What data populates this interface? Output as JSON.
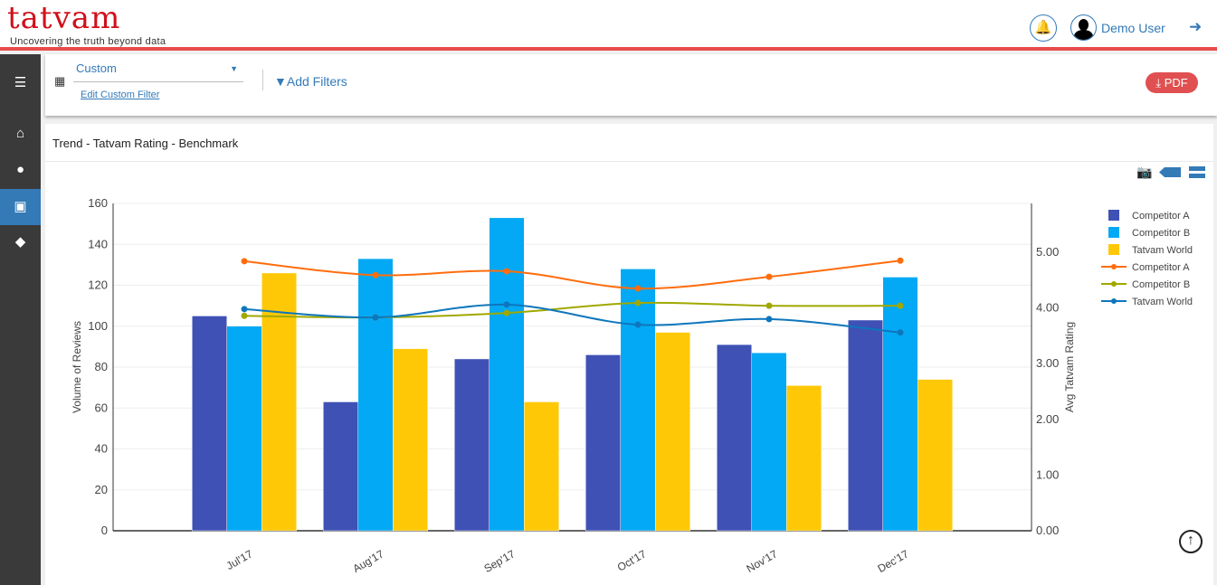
{
  "header": {
    "logo_text": "tatvam",
    "tagline": "Uncovering the truth beyond data",
    "user_name": "Demo User"
  },
  "filters": {
    "date_range": "Custom",
    "edit_link": "Edit Custom Filter",
    "add_filters": "Add Filters",
    "pdf_label": "PDF"
  },
  "card": {
    "title": "Trend - Tatvam Rating - Benchmark"
  },
  "icons": [
    "bars-icon",
    "home-icon",
    "comment-icon",
    "calendar-icon",
    "tags-icon",
    "bell-icon",
    "logout-icon",
    "camera-icon",
    "filter-icon",
    "download-icon",
    "arrow-up-icon"
  ],
  "chart_data": {
    "type": "bar",
    "categories": [
      "Jul'17",
      "Aug'17",
      "Sep'17",
      "Oct'17",
      "Nov'17",
      "Dec'17"
    ],
    "ylabel": "Volume of Reviews",
    "y2label": "Avg Tatvam Rating",
    "ylim": [
      0,
      160
    ],
    "yticks": [
      "0",
      "20",
      "40",
      "60",
      "80",
      "100",
      "120",
      "140",
      "160"
    ],
    "y2lim": [
      0,
      5.9
    ],
    "y2ticks": [
      "0.00",
      "1.00",
      "2.00",
      "3.00",
      "4.00",
      "5.00"
    ],
    "grid": true,
    "legend": "right",
    "bar_series": [
      {
        "name": "Competitor A",
        "color": "#3f51b5",
        "values": [
          105,
          63,
          84,
          86,
          91,
          103
        ]
      },
      {
        "name": "Competitor B",
        "color": "#03a9f4",
        "values": [
          100,
          133,
          153,
          128,
          87,
          124
        ]
      },
      {
        "name": "Tatvam World",
        "color": "#ffc807",
        "values": [
          126,
          89,
          63,
          97,
          71,
          74
        ]
      }
    ],
    "line_series": [
      {
        "name": "Competitor A",
        "color": "#ff6d0d",
        "values": [
          4.84,
          4.59,
          4.66,
          4.35,
          4.56,
          4.85
        ]
      },
      {
        "name": "Competitor B",
        "color": "#a0a800",
        "values": [
          3.86,
          3.83,
          3.91,
          4.09,
          4.04,
          4.04
        ]
      },
      {
        "name": "Tatvam World",
        "color": "#0e76bc",
        "values": [
          3.98,
          3.83,
          4.06,
          3.7,
          3.8,
          3.56
        ]
      }
    ]
  }
}
